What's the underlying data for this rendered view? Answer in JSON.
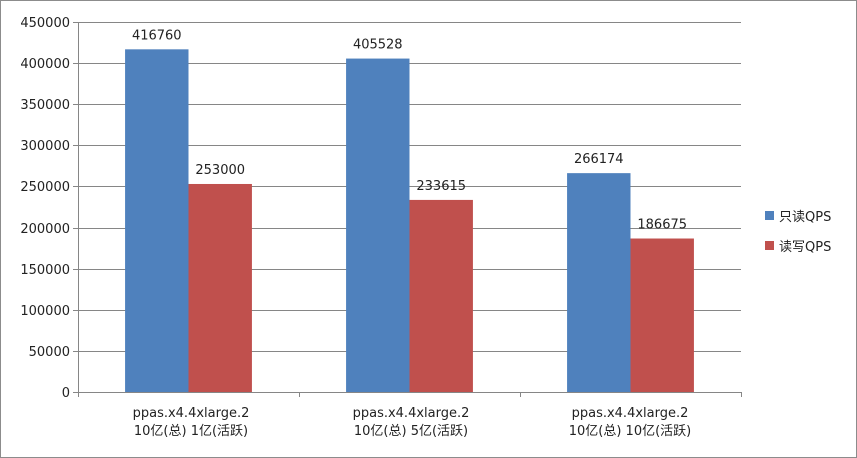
{
  "chart_data": {
    "type": "bar",
    "title": "",
    "xlabel": "",
    "ylabel": "",
    "ylim": [
      0,
      450000
    ],
    "yticks": [
      "0",
      "50000",
      "100000",
      "150000",
      "200000",
      "250000",
      "300000",
      "350000",
      "400000",
      "450000"
    ],
    "categories": [
      {
        "line1": "ppas.x4.4xlarge.2",
        "line2": "10亿(总) 1亿(活跃)"
      },
      {
        "line1": "ppas.x4.4xlarge.2",
        "line2": "10亿(总) 5亿(活跃)"
      },
      {
        "line1": "ppas.x4.4xlarge.2",
        "line2": "10亿(总) 10亿(活跃)"
      }
    ],
    "series": [
      {
        "name": "只读QPS",
        "color": "#4f81bd",
        "values": [
          416760,
          405528,
          266174
        ]
      },
      {
        "name": "读写QPS",
        "color": "#c0504d",
        "values": [
          253000,
          233615,
          186675
        ]
      }
    ],
    "grid": true,
    "legend_position": "right"
  }
}
